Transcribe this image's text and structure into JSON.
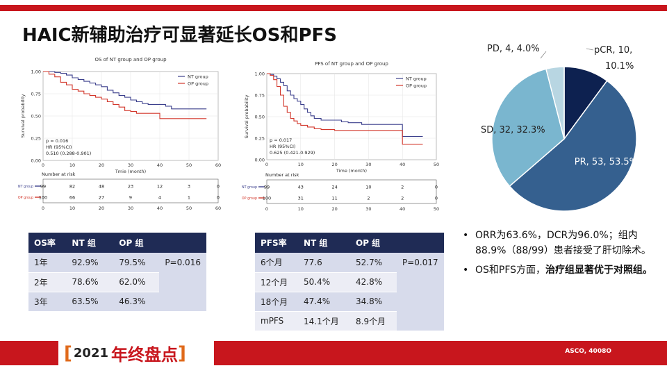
{
  "slide": {
    "title": "HAIC新辅助治疗可显著延长OS和PFS",
    "source": "ASCO, 4008O",
    "logo": {
      "year": "2021",
      "text": "年终盘点"
    },
    "colors": {
      "accent_red": "#c8161d",
      "table_header": "#1f2b55",
      "nt_line": "#3b3f8c",
      "op_line": "#d2372b"
    }
  },
  "chart_data": [
    {
      "type": "line",
      "id": "os_km",
      "title": "OS of NT group and OP group",
      "xlabel": "Tmie (month)",
      "ylabel": "Survival probability",
      "xlim": [
        0,
        60
      ],
      "ylim": [
        0,
        1
      ],
      "x_ticks": [
        0,
        10,
        20,
        30,
        40,
        50,
        60
      ],
      "y_ticks": [
        "0.00",
        "0.25",
        "0.50",
        "0.75",
        "1.00"
      ],
      "grid": true,
      "legend_position": "top-right",
      "annotation": [
        "p = 0.016",
        "HR (95%CI)",
        "0.510 (0.288-0.901)"
      ],
      "series": [
        {
          "name": "NT group",
          "color": "#3b3f8c",
          "points": [
            [
              0,
              1
            ],
            [
              2,
              1
            ],
            [
              4,
              0.99
            ],
            [
              6,
              0.98
            ],
            [
              8,
              0.96
            ],
            [
              10,
              0.93
            ],
            [
              12,
              0.91
            ],
            [
              14,
              0.89
            ],
            [
              16,
              0.87
            ],
            [
              18,
              0.85
            ],
            [
              20,
              0.83
            ],
            [
              22,
              0.79
            ],
            [
              24,
              0.76
            ],
            [
              26,
              0.73
            ],
            [
              28,
              0.71
            ],
            [
              30,
              0.68
            ],
            [
              32,
              0.66
            ],
            [
              34,
              0.64
            ],
            [
              36,
              0.63
            ],
            [
              40,
              0.63
            ],
            [
              42,
              0.61
            ],
            [
              44,
              0.58
            ],
            [
              46,
              0.58
            ],
            [
              50,
              0.58
            ],
            [
              56,
              0.58
            ]
          ]
        },
        {
          "name": "OP group",
          "color": "#d2372b",
          "points": [
            [
              0,
              1
            ],
            [
              2,
              0.97
            ],
            [
              4,
              0.94
            ],
            [
              6,
              0.88
            ],
            [
              8,
              0.85
            ],
            [
              10,
              0.8
            ],
            [
              12,
              0.78
            ],
            [
              14,
              0.75
            ],
            [
              16,
              0.73
            ],
            [
              18,
              0.71
            ],
            [
              20,
              0.69
            ],
            [
              22,
              0.66
            ],
            [
              24,
              0.63
            ],
            [
              26,
              0.6
            ],
            [
              28,
              0.56
            ],
            [
              30,
              0.55
            ],
            [
              32,
              0.53
            ],
            [
              34,
              0.53
            ],
            [
              36,
              0.53
            ],
            [
              38,
              0.53
            ],
            [
              40,
              0.47
            ],
            [
              46,
              0.47
            ],
            [
              56,
              0.47
            ]
          ]
        }
      ],
      "risk_table": {
        "label": "Number at risk",
        "x_ticks": [
          0,
          10,
          20,
          30,
          40,
          50,
          60
        ],
        "rows": [
          {
            "name": "NT group",
            "color": "#3b3f8c",
            "values": [
              99,
              82,
              48,
              23,
              12,
              3,
              0
            ]
          },
          {
            "name": "OP group",
            "color": "#d2372b",
            "values": [
              100,
              66,
              27,
              9,
              4,
              1,
              0
            ]
          }
        ]
      }
    },
    {
      "type": "line",
      "id": "pfs_km",
      "title": "PFS of NT group and OP group",
      "xlabel": "Time (month)",
      "ylabel": "Survival probability",
      "xlim": [
        0,
        50
      ],
      "ylim": [
        0,
        1
      ],
      "x_ticks": [
        0,
        10,
        20,
        30,
        40,
        50
      ],
      "y_ticks": [
        "0.00",
        "0.25",
        "0.50",
        "0.75",
        "1.00"
      ],
      "grid": true,
      "legend_position": "top-right",
      "annotation": [
        "p = 0.017",
        "HR (95%CI)",
        "0.625 (0.421-0.929)"
      ],
      "series": [
        {
          "name": "NT group",
          "color": "#3b3f8c",
          "points": [
            [
              0,
              1
            ],
            [
              1,
              0.99
            ],
            [
              2,
              0.97
            ],
            [
              3,
              0.94
            ],
            [
              4,
              0.9
            ],
            [
              5,
              0.86
            ],
            [
              6,
              0.8
            ],
            [
              7,
              0.75
            ],
            [
              8,
              0.71
            ],
            [
              9,
              0.68
            ],
            [
              10,
              0.64
            ],
            [
              11,
              0.59
            ],
            [
              12,
              0.55
            ],
            [
              13,
              0.51
            ],
            [
              14,
              0.48
            ],
            [
              16,
              0.46
            ],
            [
              18,
              0.46
            ],
            [
              20,
              0.46
            ],
            [
              22,
              0.44
            ],
            [
              24,
              0.43
            ],
            [
              28,
              0.41
            ],
            [
              32,
              0.41
            ],
            [
              38,
              0.41
            ],
            [
              40,
              0.27
            ],
            [
              46,
              0.27
            ]
          ]
        },
        {
          "name": "OP group",
          "color": "#d2372b",
          "points": [
            [
              0,
              1
            ],
            [
              1,
              0.98
            ],
            [
              2,
              0.93
            ],
            [
              3,
              0.85
            ],
            [
              4,
              0.75
            ],
            [
              5,
              0.62
            ],
            [
              6,
              0.55
            ],
            [
              7,
              0.48
            ],
            [
              8,
              0.45
            ],
            [
              9,
              0.42
            ],
            [
              10,
              0.4
            ],
            [
              12,
              0.38
            ],
            [
              14,
              0.36
            ],
            [
              16,
              0.35
            ],
            [
              20,
              0.34
            ],
            [
              26,
              0.34
            ],
            [
              32,
              0.34
            ],
            [
              38,
              0.34
            ],
            [
              40,
              0.18
            ],
            [
              46,
              0.18
            ]
          ]
        }
      ],
      "risk_table": {
        "label": "Number at risk",
        "x_ticks": [
          0,
          10,
          20,
          30,
          40,
          50
        ],
        "rows": [
          {
            "name": "NT group",
            "color": "#3b3f8c",
            "values": [
              99,
              43,
              24,
              10,
              2,
              0
            ]
          },
          {
            "name": "OP group",
            "color": "#d2372b",
            "values": [
              100,
              31,
              11,
              2,
              2,
              0
            ]
          }
        ]
      }
    },
    {
      "type": "pie",
      "id": "response_pie",
      "slices": [
        {
          "name": "pCR",
          "count": 10,
          "percent": 10.1,
          "label": "pCR, 10, 10.1%",
          "color": "#0d2150"
        },
        {
          "name": "PR",
          "count": 53,
          "percent": 53.5,
          "label": "PR, 53, 53.5%",
          "color": "#35608f"
        },
        {
          "name": "SD",
          "count": 32,
          "percent": 32.3,
          "label": "SD, 32, 32.3%",
          "color": "#7ab6cf"
        },
        {
          "name": "PD",
          "count": 4,
          "percent": 4.0,
          "label": "PD, 4, 4.0%",
          "color": "#b8d6e2"
        }
      ]
    }
  ],
  "os_table": {
    "headers": [
      "OS率",
      "NT 组",
      "OP 组",
      ""
    ],
    "rows": [
      [
        "1年",
        "92.9%",
        "79.5%"
      ],
      [
        "2年",
        "78.6%",
        "62.0%"
      ],
      [
        "3年",
        "63.5%",
        "46.3%"
      ]
    ],
    "p_value": "P=0.016"
  },
  "pfs_table": {
    "headers": [
      "PFS率",
      "NT 组",
      "OP 组",
      ""
    ],
    "rows": [
      [
        "6个月",
        "77.6",
        "52.7%"
      ],
      [
        "12个月",
        "50.4%",
        "42.8%"
      ],
      [
        "18个月",
        "47.4%",
        "34.8%"
      ],
      [
        "mPFS",
        "14.1个月",
        "8.9个月"
      ]
    ],
    "p_value": "P=0.017"
  },
  "bullets": [
    {
      "text": "ORR为63.6%，DCR为96.0%；组内88.9%（88/99）患者接受了肝切除术。",
      "strong": ""
    },
    {
      "text": "OS和PFS方面，",
      "strong": "治疗组显著优于对照组。"
    }
  ]
}
